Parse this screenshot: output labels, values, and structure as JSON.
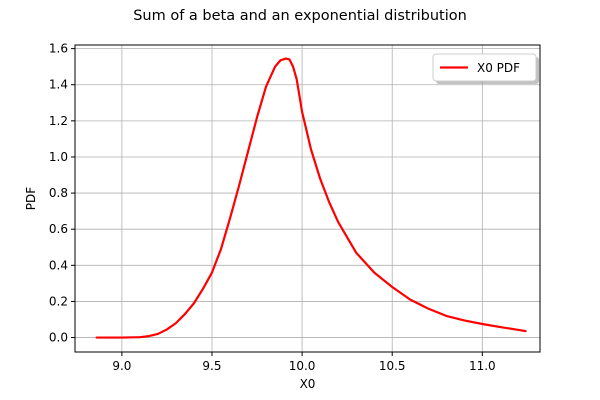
{
  "chart_data": {
    "type": "line",
    "title": "Sum of a beta and an exponential distribution",
    "xlabel": "X0",
    "ylabel": "PDF",
    "xlim": [
      8.74,
      11.32
    ],
    "ylim": [
      -0.08,
      1.62
    ],
    "xticks": [
      9.0,
      9.5,
      10.0,
      10.5,
      11.0
    ],
    "xtick_labels": [
      "9.0",
      "9.5",
      "10.0",
      "10.5",
      "11.0"
    ],
    "yticks": [
      0.0,
      0.2,
      0.4,
      0.6,
      0.8,
      1.0,
      1.2,
      1.4,
      1.6
    ],
    "ytick_labels": [
      "0.0",
      "0.2",
      "0.4",
      "0.6",
      "0.8",
      "1.0",
      "1.2",
      "1.4",
      "1.6"
    ],
    "grid": true,
    "legend_position": "top-right",
    "series": [
      {
        "name": "X0 PDF",
        "color": "#ff0000",
        "x": [
          8.86,
          9.0,
          9.1,
          9.15,
          9.2,
          9.25,
          9.3,
          9.35,
          9.4,
          9.45,
          9.5,
          9.55,
          9.6,
          9.65,
          9.7,
          9.75,
          9.8,
          9.85,
          9.88,
          9.91,
          9.93,
          9.95,
          9.97,
          10.0,
          10.05,
          10.1,
          10.15,
          10.2,
          10.3,
          10.4,
          10.5,
          10.6,
          10.7,
          10.8,
          10.9,
          11.0,
          11.1,
          11.24
        ],
        "y": [
          0.0,
          0.0,
          0.002,
          0.008,
          0.02,
          0.045,
          0.08,
          0.13,
          0.19,
          0.27,
          0.36,
          0.49,
          0.66,
          0.84,
          1.03,
          1.22,
          1.39,
          1.5,
          1.535,
          1.545,
          1.54,
          1.5,
          1.43,
          1.25,
          1.04,
          0.88,
          0.75,
          0.64,
          0.47,
          0.36,
          0.28,
          0.21,
          0.16,
          0.12,
          0.095,
          0.075,
          0.058,
          0.036
        ]
      }
    ]
  }
}
